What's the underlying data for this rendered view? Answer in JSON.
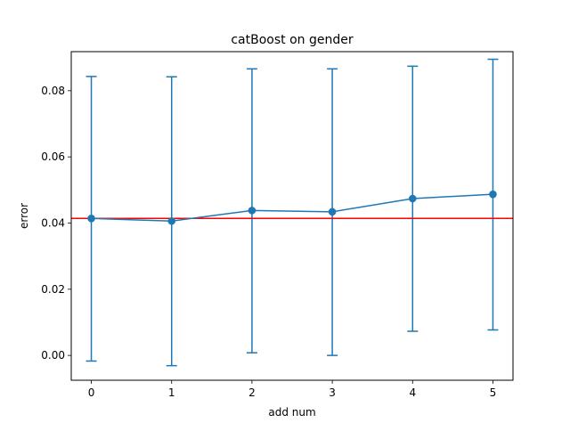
{
  "chart_data": {
    "type": "line",
    "title": "catBoost on gender",
    "xlabel": "add num",
    "ylabel": "error",
    "x": [
      0,
      1,
      2,
      3,
      4,
      5
    ],
    "series": [
      {
        "values": [
          0.0414,
          0.0406,
          0.0438,
          0.0434,
          0.0474,
          0.0487
        ],
        "error_lower": [
          -0.0017,
          -0.0031,
          0.0008,
          0.0,
          0.0073,
          0.0077
        ],
        "error_upper": [
          0.0843,
          0.0842,
          0.0866,
          0.0866,
          0.0874,
          0.0895
        ],
        "color": "#1f77b4"
      }
    ],
    "reference_line": {
      "y": 0.0414,
      "color": "#ff0000"
    },
    "xlim": [
      -0.25,
      5.25
    ],
    "ylim": [
      -0.0075,
      0.0918
    ],
    "xticks": [
      "0",
      "1",
      "2",
      "3",
      "4",
      "5"
    ],
    "yticks": [
      "0.00",
      "0.02",
      "0.04",
      "0.06",
      "0.08"
    ],
    "grid": false,
    "legend": "none"
  }
}
